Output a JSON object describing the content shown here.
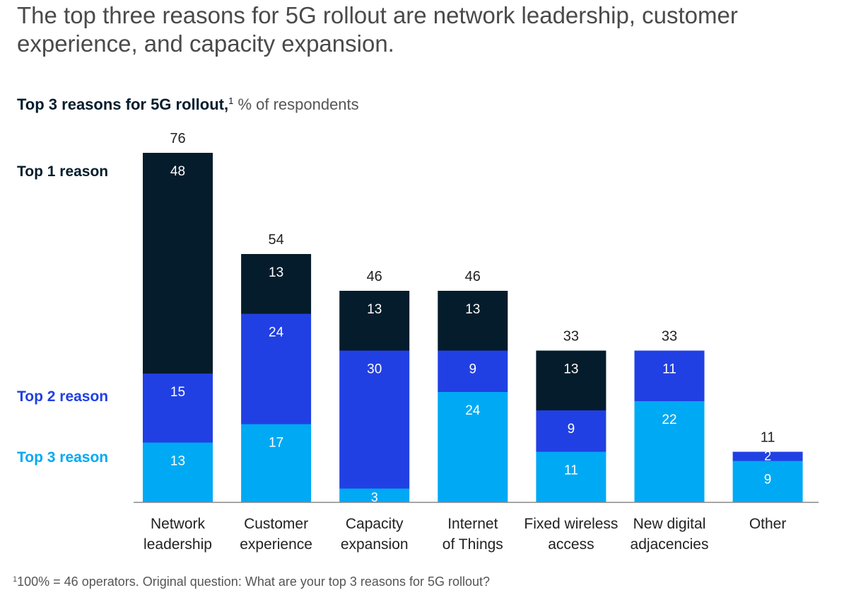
{
  "headline": "The top three reasons for 5G rollout are network leadership, customer experience, and capacity expansion.",
  "subtitle": {
    "bold": "Top 3 reasons for 5G rollout,",
    "footnote_ref": "1",
    "unit": "% of respondents"
  },
  "footnote": {
    "ref": "1",
    "text": "100% = 46 operators. Original question: What are your top 3 reasons for 5G rollout?"
  },
  "chart_data": {
    "type": "bar",
    "stacked": true,
    "categories": [
      [
        "Network",
        "leadership"
      ],
      [
        "Customer",
        "experience"
      ],
      [
        "Capacity",
        "expansion"
      ],
      [
        "Internet",
        "of Things"
      ],
      [
        "Fixed wireless",
        "access"
      ],
      [
        "New digital",
        "adjacencies"
      ],
      [
        "Other"
      ]
    ],
    "totals": [
      76,
      54,
      46,
      46,
      33,
      33,
      11
    ],
    "series": [
      {
        "name": "Top 3 reason",
        "color": "#00a9f4",
        "label_color": "#00a9f4",
        "values": [
          13,
          17,
          3,
          24,
          11,
          22,
          9
        ]
      },
      {
        "name": "Top 2 reason",
        "color": "#2140e3",
        "label_color": "#2140e3",
        "values": [
          15,
          24,
          30,
          9,
          9,
          11,
          2
        ]
      },
      {
        "name": "Top 1 reason",
        "color": "#051c2c",
        "label_color": "#051c2c",
        "values": [
          48,
          13,
          13,
          13,
          13,
          0,
          0
        ]
      }
    ],
    "ylim": [
      0,
      76
    ],
    "grid": false,
    "legend_placement": "left"
  }
}
